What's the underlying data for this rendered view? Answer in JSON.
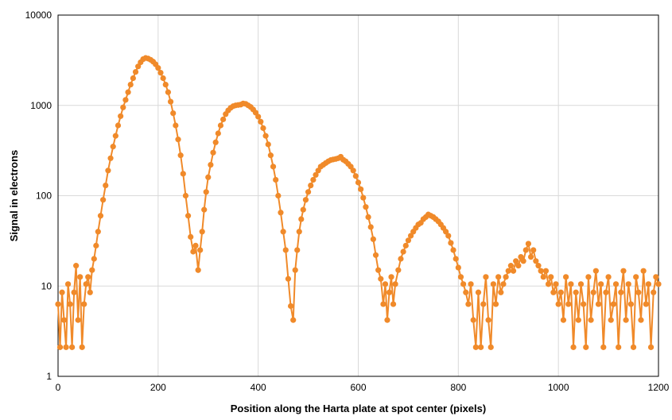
{
  "chart_data": {
    "type": "scatter",
    "title": "",
    "xlabel": "Position along the Harta plate at spot center (pixels)",
    "ylabel": "Signal in electrons",
    "xlim": [
      0,
      1200
    ],
    "ylim": [
      1,
      10000
    ],
    "yscale": "log",
    "x_ticks": [
      "0",
      "200",
      "400",
      "600",
      "800",
      "1000",
      "1200"
    ],
    "y_ticks": [
      "1",
      "10",
      "100",
      "1000",
      "10000"
    ],
    "grid": true,
    "legend": "none",
    "color": "#F08A2A",
    "series": [
      {
        "points": [
          [
            0,
            6.3
          ],
          [
            4,
            2.1
          ],
          [
            8,
            8.5
          ],
          [
            12,
            4.2
          ],
          [
            16,
            2.1
          ],
          [
            20,
            10.5
          ],
          [
            24,
            6.3
          ],
          [
            28,
            2.1
          ],
          [
            32,
            8.5
          ],
          [
            36,
            16.8
          ],
          [
            40,
            4.2
          ],
          [
            44,
            12.6
          ],
          [
            48,
            2.1
          ],
          [
            52,
            6.3
          ],
          [
            56,
            10.5
          ],
          [
            60,
            12.6
          ],
          [
            64,
            8.5
          ],
          [
            68,
            15
          ],
          [
            72,
            20
          ],
          [
            76,
            28
          ],
          [
            80,
            40
          ],
          [
            85,
            60
          ],
          [
            90,
            90
          ],
          [
            95,
            130
          ],
          [
            100,
            190
          ],
          [
            105,
            260
          ],
          [
            110,
            350
          ],
          [
            115,
            460
          ],
          [
            120,
            600
          ],
          [
            125,
            760
          ],
          [
            130,
            950
          ],
          [
            135,
            1150
          ],
          [
            140,
            1400
          ],
          [
            145,
            1700
          ],
          [
            150,
            2000
          ],
          [
            155,
            2350
          ],
          [
            160,
            2700
          ],
          [
            165,
            3000
          ],
          [
            170,
            3250
          ],
          [
            175,
            3350
          ],
          [
            180,
            3300
          ],
          [
            185,
            3200
          ],
          [
            190,
            3050
          ],
          [
            195,
            2850
          ],
          [
            200,
            2600
          ],
          [
            205,
            2300
          ],
          [
            210,
            2000
          ],
          [
            215,
            1700
          ],
          [
            220,
            1400
          ],
          [
            225,
            1100
          ],
          [
            230,
            820
          ],
          [
            235,
            600
          ],
          [
            240,
            420
          ],
          [
            245,
            280
          ],
          [
            250,
            175
          ],
          [
            255,
            100
          ],
          [
            260,
            60
          ],
          [
            265,
            35
          ],
          [
            270,
            24
          ],
          [
            275,
            28
          ],
          [
            280,
            15
          ],
          [
            284,
            25
          ],
          [
            288,
            40
          ],
          [
            292,
            70
          ],
          [
            296,
            110
          ],
          [
            300,
            160
          ],
          [
            305,
            220
          ],
          [
            310,
            300
          ],
          [
            315,
            390
          ],
          [
            320,
            490
          ],
          [
            325,
            600
          ],
          [
            330,
            700
          ],
          [
            335,
            800
          ],
          [
            340,
            880
          ],
          [
            345,
            940
          ],
          [
            350,
            980
          ],
          [
            355,
            1000
          ],
          [
            360,
            1010
          ],
          [
            365,
            1020
          ],
          [
            370,
            1050
          ],
          [
            375,
            1040
          ],
          [
            380,
            1000
          ],
          [
            385,
            960
          ],
          [
            390,
            900
          ],
          [
            395,
            830
          ],
          [
            400,
            750
          ],
          [
            405,
            660
          ],
          [
            410,
            560
          ],
          [
            415,
            460
          ],
          [
            420,
            370
          ],
          [
            425,
            280
          ],
          [
            430,
            210
          ],
          [
            435,
            150
          ],
          [
            440,
            100
          ],
          [
            445,
            65
          ],
          [
            450,
            40
          ],
          [
            455,
            25
          ],
          [
            460,
            12
          ],
          [
            465,
            6
          ],
          [
            470,
            4.2
          ],
          [
            474,
            15
          ],
          [
            478,
            25
          ],
          [
            482,
            40
          ],
          [
            486,
            55
          ],
          [
            490,
            70
          ],
          [
            495,
            90
          ],
          [
            500,
            110
          ],
          [
            505,
            130
          ],
          [
            510,
            150
          ],
          [
            515,
            170
          ],
          [
            520,
            190
          ],
          [
            525,
            210
          ],
          [
            530,
            220
          ],
          [
            535,
            230
          ],
          [
            540,
            240
          ],
          [
            545,
            248
          ],
          [
            550,
            252
          ],
          [
            555,
            255
          ],
          [
            560,
            260
          ],
          [
            565,
            270
          ],
          [
            570,
            250
          ],
          [
            575,
            240
          ],
          [
            580,
            225
          ],
          [
            585,
            210
          ],
          [
            590,
            190
          ],
          [
            595,
            165
          ],
          [
            600,
            140
          ],
          [
            605,
            118
          ],
          [
            610,
            95
          ],
          [
            615,
            75
          ],
          [
            620,
            58
          ],
          [
            625,
            45
          ],
          [
            630,
            33
          ],
          [
            635,
            22
          ],
          [
            640,
            15
          ],
          [
            645,
            12
          ],
          [
            650,
            6.3
          ],
          [
            654,
            10.5
          ],
          [
            658,
            4.2
          ],
          [
            662,
            8.5
          ],
          [
            666,
            12.6
          ],
          [
            670,
            6.3
          ],
          [
            674,
            10.5
          ],
          [
            680,
            15
          ],
          [
            685,
            20
          ],
          [
            690,
            24
          ],
          [
            695,
            28
          ],
          [
            700,
            32
          ],
          [
            705,
            36
          ],
          [
            710,
            40
          ],
          [
            715,
            44
          ],
          [
            720,
            48
          ],
          [
            725,
            50
          ],
          [
            730,
            55
          ],
          [
            735,
            58
          ],
          [
            740,
            62
          ],
          [
            745,
            60
          ],
          [
            750,
            58
          ],
          [
            755,
            55
          ],
          [
            760,
            52
          ],
          [
            765,
            48
          ],
          [
            770,
            44
          ],
          [
            775,
            40
          ],
          [
            780,
            36
          ],
          [
            785,
            30
          ],
          [
            790,
            25
          ],
          [
            795,
            20
          ],
          [
            800,
            16
          ],
          [
            805,
            12.6
          ],
          [
            810,
            10.5
          ],
          [
            815,
            8.5
          ],
          [
            820,
            6.3
          ],
          [
            825,
            10.5
          ],
          [
            830,
            4.2
          ],
          [
            835,
            2.1
          ],
          [
            840,
            8.5
          ],
          [
            845,
            2.1
          ],
          [
            850,
            6.3
          ],
          [
            855,
            12.6
          ],
          [
            860,
            4.2
          ],
          [
            865,
            2.1
          ],
          [
            870,
            10.5
          ],
          [
            875,
            6.3
          ],
          [
            880,
            12.6
          ],
          [
            885,
            8.5
          ],
          [
            890,
            10.5
          ],
          [
            895,
            12.6
          ],
          [
            900,
            14.7
          ],
          [
            905,
            16.8
          ],
          [
            910,
            14.7
          ],
          [
            915,
            18.9
          ],
          [
            920,
            16.8
          ],
          [
            925,
            21
          ],
          [
            930,
            18.9
          ],
          [
            935,
            25
          ],
          [
            940,
            29.4
          ],
          [
            945,
            21
          ],
          [
            950,
            25
          ],
          [
            955,
            18.9
          ],
          [
            960,
            16.8
          ],
          [
            965,
            14.7
          ],
          [
            970,
            12.6
          ],
          [
            975,
            14.7
          ],
          [
            980,
            10.5
          ],
          [
            985,
            12.6
          ],
          [
            990,
            8.5
          ],
          [
            995,
            10.5
          ],
          [
            1000,
            6.3
          ],
          [
            1005,
            8.5
          ],
          [
            1010,
            4.2
          ],
          [
            1015,
            12.6
          ],
          [
            1020,
            6.3
          ],
          [
            1025,
            10.5
          ],
          [
            1030,
            2.1
          ],
          [
            1035,
            8.5
          ],
          [
            1040,
            4.2
          ],
          [
            1045,
            10.5
          ],
          [
            1050,
            6.3
          ],
          [
            1055,
            2.1
          ],
          [
            1060,
            12.6
          ],
          [
            1065,
            4.2
          ],
          [
            1070,
            8.5
          ],
          [
            1075,
            14.7
          ],
          [
            1080,
            6.3
          ],
          [
            1085,
            10.5
          ],
          [
            1090,
            2.1
          ],
          [
            1095,
            8.5
          ],
          [
            1100,
            12.6
          ],
          [
            1105,
            4.2
          ],
          [
            1110,
            6.3
          ],
          [
            1115,
            10.5
          ],
          [
            1120,
            2.1
          ],
          [
            1125,
            8.5
          ],
          [
            1130,
            14.7
          ],
          [
            1135,
            4.2
          ],
          [
            1140,
            10.5
          ],
          [
            1145,
            6.3
          ],
          [
            1150,
            2.1
          ],
          [
            1155,
            12.6
          ],
          [
            1160,
            8.5
          ],
          [
            1165,
            4.2
          ],
          [
            1170,
            14.7
          ],
          [
            1175,
            6.3
          ],
          [
            1180,
            10.5
          ],
          [
            1185,
            2.1
          ],
          [
            1190,
            8.5
          ],
          [
            1195,
            12.6
          ],
          [
            1200,
            10.5
          ]
        ]
      }
    ]
  }
}
